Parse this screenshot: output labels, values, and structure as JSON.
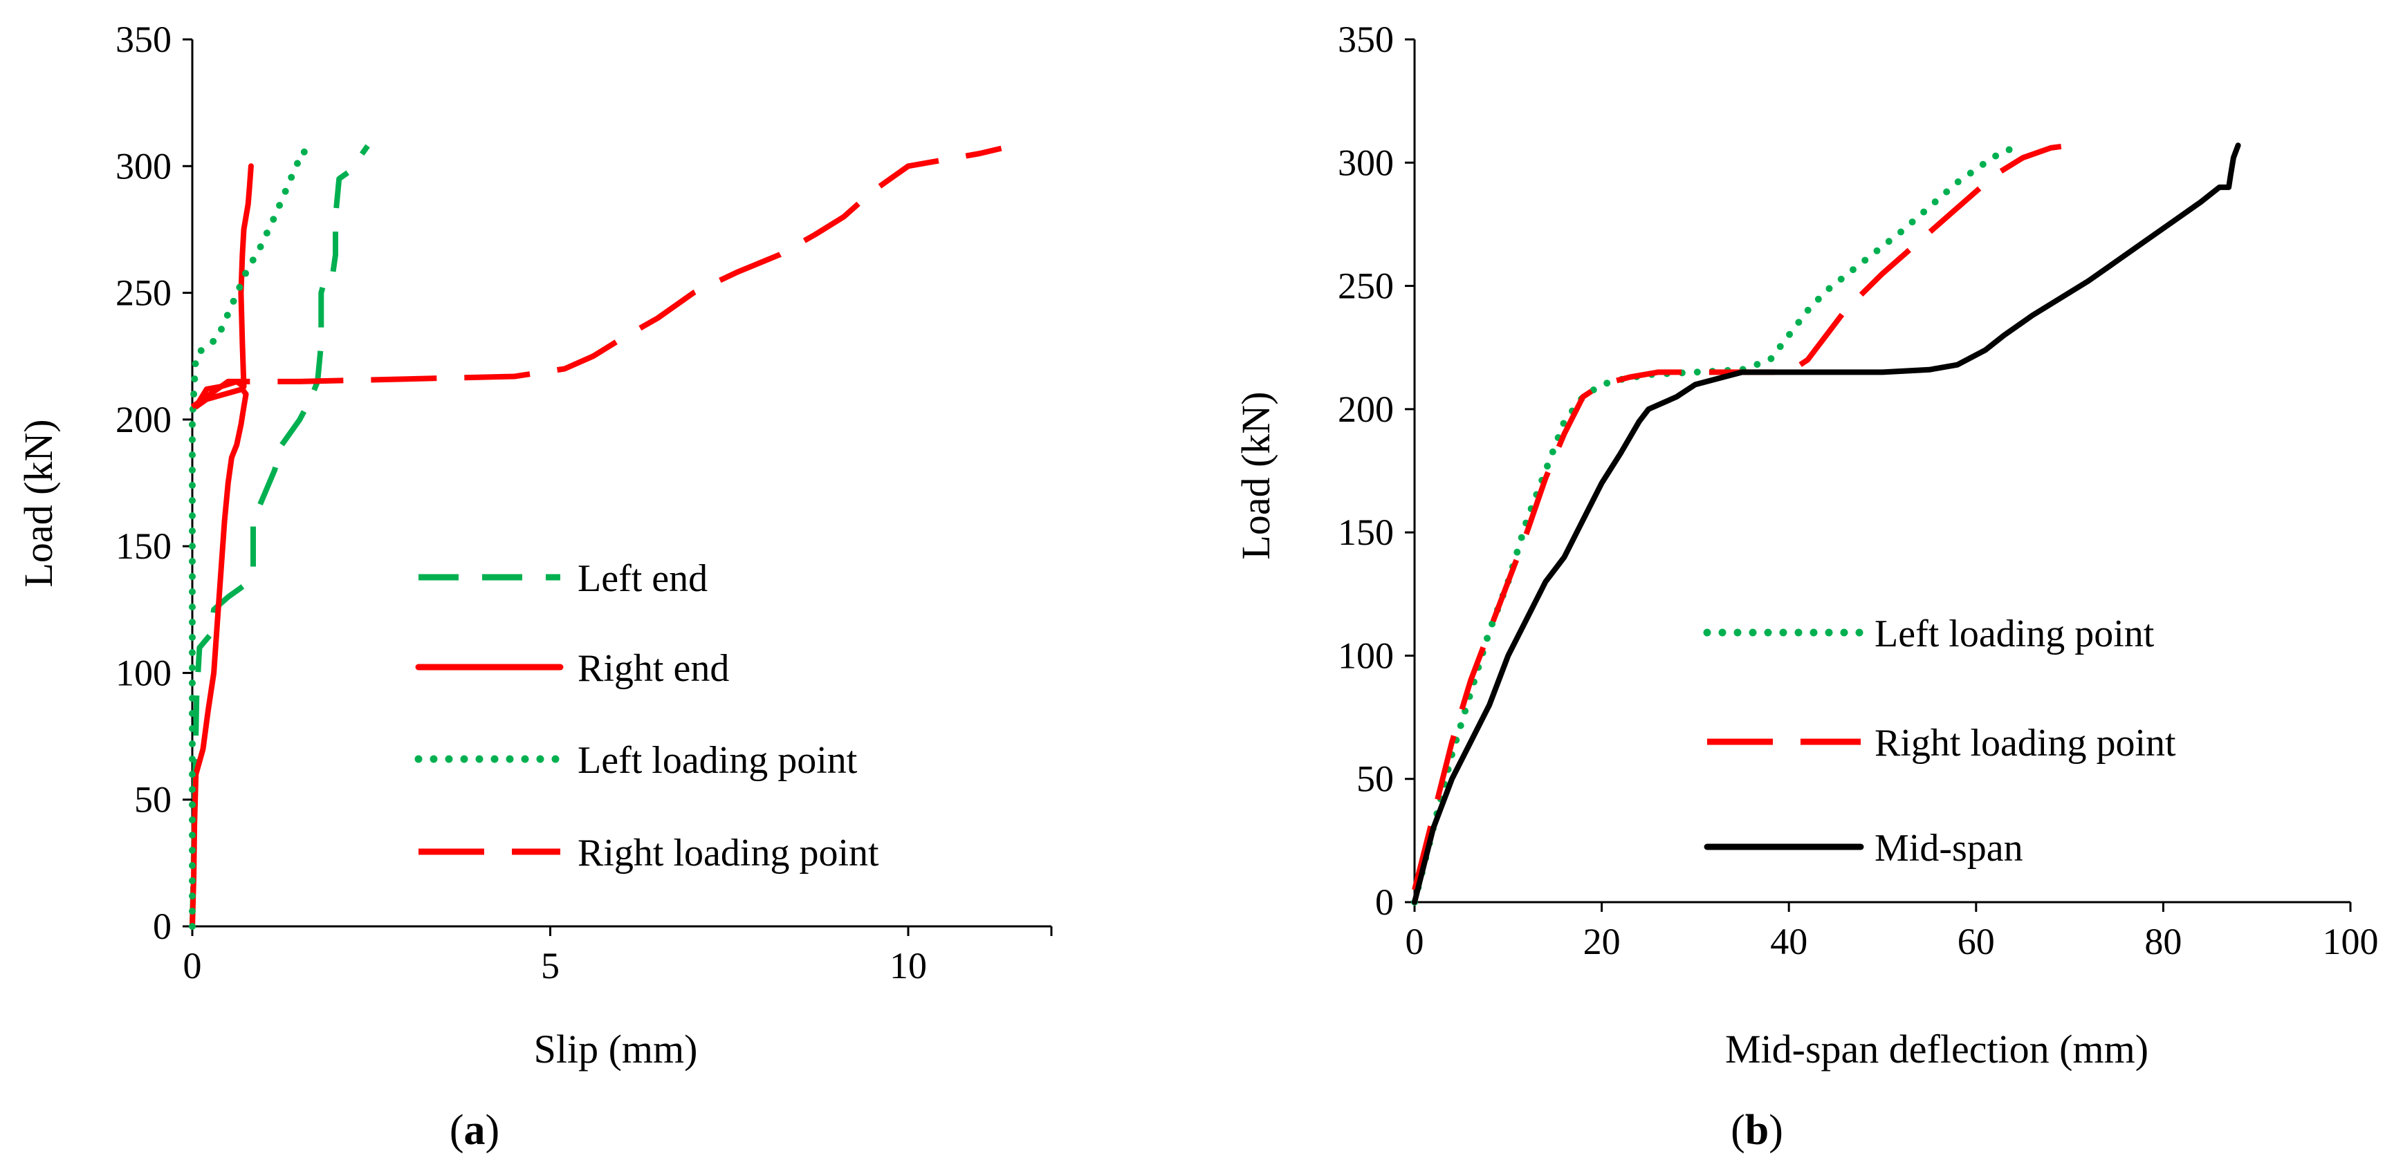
{
  "colors": {
    "green": "#00b050",
    "red": "#ff0000",
    "black": "#000000"
  },
  "chart_data": [
    {
      "id": "a",
      "type": "line",
      "panel_label_open": "(",
      "panel_label_letter": "a",
      "panel_label_close": ")",
      "title": "",
      "xlabel": "Slip (mm)",
      "ylabel": "Load (kN)",
      "xlim": [
        0,
        12
      ],
      "ylim": [
        0,
        350
      ],
      "xticks": [
        0,
        5,
        10
      ],
      "yticks": [
        0,
        50,
        100,
        150,
        200,
        250,
        300,
        350
      ],
      "grid": false,
      "legend_position": "right-center",
      "series": [
        {
          "name": "Left end",
          "style": "dashed",
          "color": "#00b050",
          "points": [
            [
              0,
              0
            ],
            [
              0.02,
              30
            ],
            [
              0.04,
              60
            ],
            [
              0.06,
              90
            ],
            [
              0.1,
              110
            ],
            [
              0.25,
              115
            ],
            [
              0.3,
              125
            ],
            [
              0.5,
              130
            ],
            [
              0.75,
              135
            ],
            [
              0.85,
              140
            ],
            [
              0.85,
              160
            ],
            [
              1.0,
              170
            ],
            [
              1.15,
              180
            ],
            [
              1.25,
              190
            ],
            [
              1.5,
              200
            ],
            [
              1.65,
              208
            ],
            [
              1.75,
              215
            ],
            [
              1.8,
              230
            ],
            [
              1.8,
              250
            ],
            [
              1.85,
              255
            ],
            [
              1.95,
              255
            ],
            [
              2.0,
              265
            ],
            [
              2.0,
              280
            ],
            [
              2.05,
              295
            ],
            [
              2.2,
              298
            ],
            [
              2.3,
              302
            ],
            [
              2.45,
              308
            ]
          ]
        },
        {
          "name": "Right end",
          "style": "solid",
          "color": "#ff0000",
          "points": [
            [
              0,
              0
            ],
            [
              0.02,
              20
            ],
            [
              0.03,
              40
            ],
            [
              0.05,
              60
            ],
            [
              0.15,
              70
            ],
            [
              0.22,
              85
            ],
            [
              0.3,
              100
            ],
            [
              0.35,
              120
            ],
            [
              0.4,
              140
            ],
            [
              0.45,
              160
            ],
            [
              0.5,
              175
            ],
            [
              0.55,
              185
            ],
            [
              0.62,
              190
            ],
            [
              0.68,
              198
            ],
            [
              0.72,
              205
            ],
            [
              0.75,
              210
            ],
            [
              0.7,
              212
            ],
            [
              0.45,
              210
            ],
            [
              0.2,
              208
            ],
            [
              0.05,
              205
            ],
            [
              0.2,
              212
            ],
            [
              0.4,
              213
            ],
            [
              0.62,
              215
            ],
            [
              0.72,
              213
            ],
            [
              0.7,
              230
            ],
            [
              0.68,
              250
            ],
            [
              0.7,
              265
            ],
            [
              0.72,
              275
            ],
            [
              0.78,
              285
            ],
            [
              0.8,
              292
            ],
            [
              0.82,
              300
            ]
          ]
        },
        {
          "name": "Left loading point",
          "style": "dotted",
          "color": "#00b050",
          "points": [
            [
              0,
              0
            ],
            [
              0,
              50
            ],
            [
              0,
              100
            ],
            [
              0,
              150
            ],
            [
              0,
              200
            ],
            [
              0.05,
              225
            ],
            [
              0.15,
              228
            ],
            [
              0.35,
              232
            ],
            [
              0.55,
              245
            ],
            [
              0.75,
              258
            ],
            [
              0.95,
              268
            ],
            [
              1.15,
              280
            ],
            [
              1.3,
              290
            ],
            [
              1.45,
              300
            ],
            [
              1.55,
              306
            ],
            [
              1.65,
              303
            ]
          ]
        },
        {
          "name": "Right loading point",
          "style": "longdash",
          "color": "#ff0000",
          "points": [
            [
              0,
              205
            ],
            [
              0.5,
              215
            ],
            [
              1.5,
              215
            ],
            [
              3.0,
              216
            ],
            [
              4.5,
              217
            ],
            [
              5.2,
              220
            ],
            [
              5.6,
              225
            ],
            [
              6.0,
              232
            ],
            [
              6.5,
              240
            ],
            [
              7.0,
              250
            ],
            [
              7.6,
              258
            ],
            [
              8.2,
              265
            ],
            [
              8.7,
              273
            ],
            [
              9.1,
              280
            ],
            [
              9.5,
              290
            ],
            [
              10.0,
              300
            ],
            [
              10.6,
              303
            ],
            [
              11.0,
              305
            ],
            [
              11.3,
              307
            ]
          ]
        }
      ]
    },
    {
      "id": "b",
      "type": "line",
      "panel_label_open": "(",
      "panel_label_letter": "b",
      "panel_label_close": ")",
      "title": "",
      "xlabel": "Mid-span deflection (mm)",
      "ylabel": "Load (kN)",
      "xlim": [
        0,
        100
      ],
      "ylim": [
        0,
        350
      ],
      "xticks": [
        0,
        20,
        40,
        60,
        80,
        100
      ],
      "yticks": [
        0,
        50,
        100,
        150,
        200,
        250,
        300,
        350
      ],
      "grid": false,
      "legend_position": "right-center",
      "series": [
        {
          "name": "Left loading point",
          "style": "dotted",
          "color": "#00b050",
          "points": [
            [
              0,
              0
            ],
            [
              2,
              30
            ],
            [
              4,
              60
            ],
            [
              6,
              85
            ],
            [
              8,
              110
            ],
            [
              10,
              130
            ],
            [
              12,
              155
            ],
            [
              14,
              175
            ],
            [
              16,
              195
            ],
            [
              18,
              205
            ],
            [
              20,
              210
            ],
            [
              22,
              212
            ],
            [
              25,
              214
            ],
            [
              30,
              215
            ],
            [
              35,
              216
            ],
            [
              38,
              220
            ],
            [
              40,
              230
            ],
            [
              42,
              240
            ],
            [
              44,
              248
            ],
            [
              48,
              260
            ],
            [
              52,
              272
            ],
            [
              55,
              282
            ],
            [
              58,
              292
            ],
            [
              61,
              300
            ],
            [
              63,
              305
            ],
            [
              65,
              306
            ]
          ]
        },
        {
          "name": "Right loading point",
          "style": "longdash",
          "color": "#ff0000",
          "points": [
            [
              0,
              5
            ],
            [
              2,
              35
            ],
            [
              4,
              65
            ],
            [
              6,
              90
            ],
            [
              8,
              110
            ],
            [
              10,
              130
            ],
            [
              12,
              150
            ],
            [
              14,
              172
            ],
            [
              16,
              190
            ],
            [
              18,
              205
            ],
            [
              20,
              210
            ],
            [
              23,
              213
            ],
            [
              26,
              215
            ],
            [
              30,
              215
            ],
            [
              35,
              215
            ],
            [
              40,
              215
            ],
            [
              42,
              220
            ],
            [
              44,
              230
            ],
            [
              46,
              240
            ],
            [
              50,
              255
            ],
            [
              53,
              265
            ],
            [
              56,
              275
            ],
            [
              59,
              285
            ],
            [
              62,
              295
            ],
            [
              65,
              302
            ],
            [
              68,
              306
            ],
            [
              70,
              307
            ]
          ]
        },
        {
          "name": "Mid-span",
          "style": "solid",
          "color": "#000000",
          "points": [
            [
              0,
              0
            ],
            [
              1,
              15
            ],
            [
              2,
              30
            ],
            [
              4,
              50
            ],
            [
              6,
              65
            ],
            [
              8,
              80
            ],
            [
              10,
              100
            ],
            [
              12,
              115
            ],
            [
              14,
              130
            ],
            [
              16,
              140
            ],
            [
              18,
              155
            ],
            [
              20,
              170
            ],
            [
              22,
              182
            ],
            [
              24,
              195
            ],
            [
              25,
              200
            ],
            [
              28,
              205
            ],
            [
              30,
              210
            ],
            [
              33,
              213
            ],
            [
              35,
              215
            ],
            [
              40,
              215
            ],
            [
              45,
              215
            ],
            [
              50,
              215
            ],
            [
              55,
              216
            ],
            [
              58,
              218
            ],
            [
              61,
              224
            ],
            [
              63,
              230
            ],
            [
              66,
              238
            ],
            [
              69,
              245
            ],
            [
              72,
              252
            ],
            [
              75,
              260
            ],
            [
              78,
              268
            ],
            [
              81,
              276
            ],
            [
              84,
              284
            ],
            [
              86,
              290
            ],
            [
              87,
              290
            ],
            [
              87.2,
              295
            ],
            [
              87.5,
              302
            ],
            [
              88,
              307
            ]
          ]
        }
      ]
    }
  ]
}
